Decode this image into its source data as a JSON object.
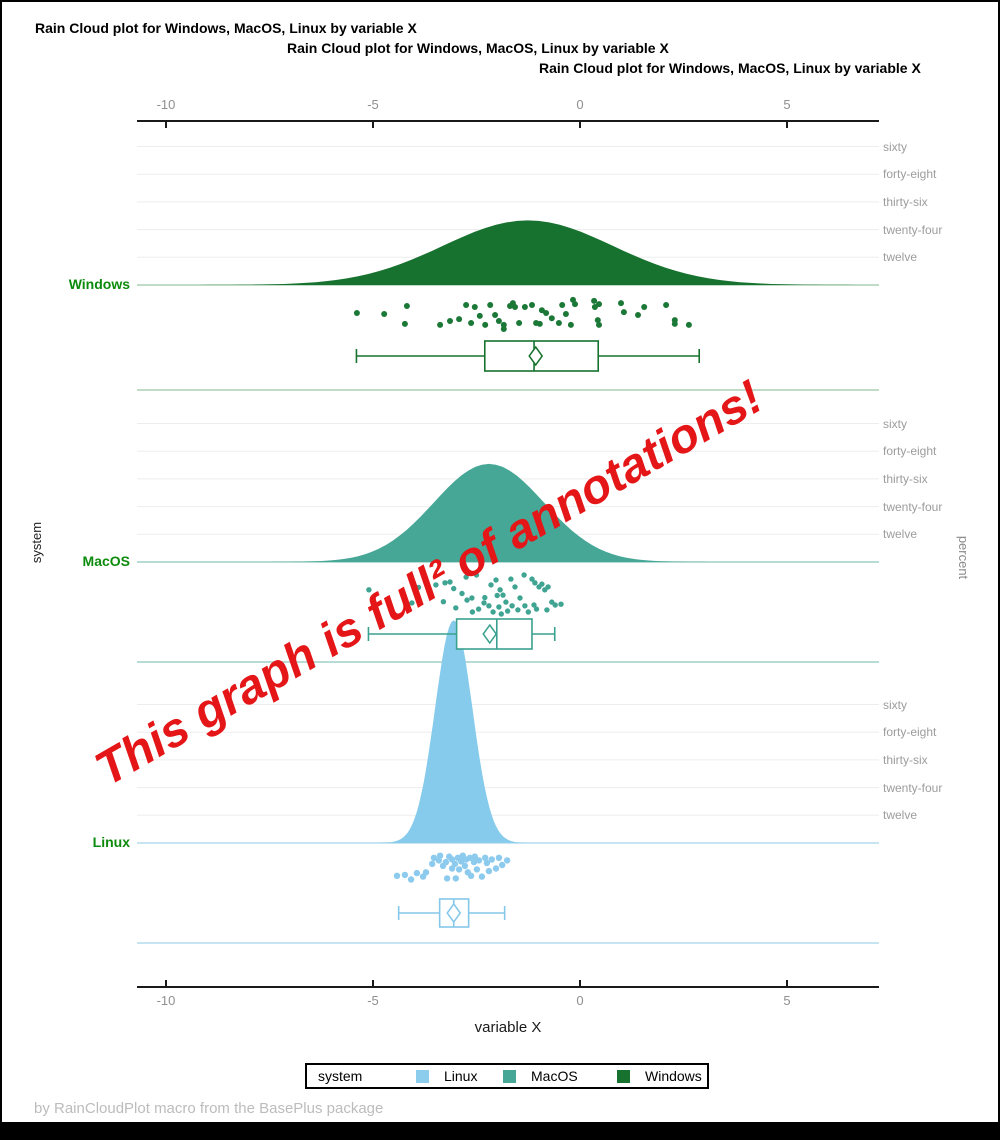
{
  "titles": [
    "Rain Cloud plot for Windows, MacOS, Linux by variable X",
    "Rain Cloud plot for Windows, MacOS, Linux by variable X",
    "Rain Cloud plot for Windows, MacOS, Linux by variable X"
  ],
  "annotation": {
    "text": "This graph is full² of annotations!",
    "color": "#e41617"
  },
  "footnote": "by RainCloudPlot macro from the BasePlus package",
  "axis": {
    "x_label": "variable X",
    "left_label": "system",
    "right_label": "percent",
    "x_ticks": [
      "-10",
      "-5",
      "0",
      "5"
    ],
    "x_tick_values": [
      -10,
      -5,
      0,
      5
    ]
  },
  "legend": {
    "title": "system",
    "entries": [
      {
        "label": "Linux",
        "color": "#8ccdee"
      },
      {
        "label": "MacOS",
        "color": "#47a797"
      },
      {
        "label": "Windows",
        "color": "#17722f"
      }
    ]
  },
  "colors": {
    "group_label_green": "#0b8b0b",
    "gridline_gray": "#ededed",
    "axis_black": "#1a1a1a",
    "tick_gray": "#8f8f8f",
    "band_label_gray": "#9c9c9c"
  },
  "chart_data": {
    "type": "raincloud",
    "title": "Rain Cloud plot for Windows, MacOS, Linux by variable X",
    "xlabel": "variable X",
    "ylabel_left": "system",
    "ylabel_right": "percent",
    "x_ticks": [
      -10,
      -5,
      0,
      5
    ],
    "x_range": [
      -10.7,
      7.2
    ],
    "percent_gridlines": {
      "values": [
        60,
        48,
        36,
        24,
        12
      ],
      "labels": [
        "sixty",
        "forty-eight",
        "thirty-six",
        "twenty-four",
        "twelve"
      ]
    },
    "groups": [
      {
        "name": "Windows",
        "fill": "#17722f",
        "point_color": "#1b7837",
        "box_color": "#17722f",
        "pale_color": "#c0dcc7",
        "density": {
          "center": -1.26,
          "sigma": 2.05,
          "peak_percent": 28
        },
        "box": {
          "min": -5.4,
          "q1": -2.3,
          "median": -1.11,
          "q3": 0.44,
          "max": 2.88,
          "mean": -1.07
        },
        "points": [
          [
            -5.39,
            0.47
          ],
          [
            -4.73,
            0.5
          ],
          [
            -4.18,
            0.25
          ],
          [
            -4.23,
            0.81
          ],
          [
            -3.38,
            0.84
          ],
          [
            -3.14,
            0.72
          ],
          [
            -2.92,
            0.66
          ],
          [
            -2.75,
            0.22
          ],
          [
            -2.63,
            0.78
          ],
          [
            -2.54,
            0.28
          ],
          [
            -2.42,
            0.56
          ],
          [
            -2.29,
            0.84
          ],
          [
            -2.17,
            0.22
          ],
          [
            -2.05,
            0.53
          ],
          [
            -1.96,
            0.72
          ],
          [
            -1.84,
            0.84
          ],
          [
            -1.84,
            0.97
          ],
          [
            -1.69,
            0.25
          ],
          [
            -1.62,
            0.16
          ],
          [
            -1.57,
            0.28
          ],
          [
            -1.47,
            0.78
          ],
          [
            -1.33,
            0.28
          ],
          [
            -1.16,
            0.22
          ],
          [
            -1.06,
            0.78
          ],
          [
            -0.97,
            0.81
          ],
          [
            -0.92,
            0.38
          ],
          [
            -0.82,
            0.47
          ],
          [
            -0.68,
            0.63
          ],
          [
            -0.51,
            0.78
          ],
          [
            -0.43,
            0.22
          ],
          [
            -0.34,
            0.5
          ],
          [
            -0.22,
            0.84
          ],
          [
            -0.17,
            0.06
          ],
          [
            -0.12,
            0.19
          ],
          [
            0.34,
            0.09
          ],
          [
            0.36,
            0.28
          ],
          [
            0.46,
            0.19
          ],
          [
            0.43,
            0.69
          ],
          [
            0.46,
            0.84
          ],
          [
            0.99,
            0.16
          ],
          [
            1.06,
            0.44
          ],
          [
            1.4,
            0.53
          ],
          [
            1.55,
            0.28
          ],
          [
            2.08,
            0.22
          ],
          [
            2.29,
            0.69
          ],
          [
            2.29,
            0.81
          ],
          [
            2.63,
            0.84
          ]
        ]
      },
      {
        "name": "MacOS",
        "fill": "#47a797",
        "point_color": "#40a493",
        "box_color": "#3aa18f",
        "pale_color": "#b7dbd5",
        "density": {
          "center": -2.2,
          "sigma": 1.33,
          "peak_percent": 42.5
        },
        "box": {
          "min": -5.11,
          "q1": -2.98,
          "median": -2.01,
          "q3": -1.16,
          "max": -0.61,
          "mean": -2.18
        },
        "points": [
          [
            -5.1,
            0.41
          ],
          [
            -4.06,
            0.73
          ],
          [
            -3.74,
            0.12
          ],
          [
            -3.48,
            0.29
          ],
          [
            -3.26,
            0.24
          ],
          [
            -3.14,
            0.22
          ],
          [
            -2.73,
            0.66
          ],
          [
            -2.61,
            0.61
          ],
          [
            -2.15,
            0.29
          ],
          [
            -2.03,
            0.17
          ],
          [
            -1.93,
            0.41
          ],
          [
            -1.86,
            0.54
          ],
          [
            -1.79,
            0.71
          ],
          [
            -1.67,
            0.15
          ],
          [
            -1.57,
            0.34
          ],
          [
            -1.45,
            0.61
          ],
          [
            -1.16,
            0.15
          ],
          [
            -1.09,
            0.24
          ],
          [
            -0.99,
            0.34
          ],
          [
            -0.92,
            0.27
          ],
          [
            -0.85,
            0.41
          ],
          [
            -0.77,
            0.34
          ],
          [
            -0.68,
            0.71
          ],
          [
            -0.6,
            0.78
          ],
          [
            -0.46,
            0.76
          ],
          [
            -1.11,
            0.78
          ],
          [
            -1.33,
            0.8
          ],
          [
            -1.64,
            0.8
          ],
          [
            -1.96,
            0.83
          ],
          [
            -2.2,
            0.8
          ],
          [
            -2.32,
            0.73
          ],
          [
            -3.6,
            0.55
          ],
          [
            -3.3,
            0.7
          ],
          [
            -3.0,
            0.85
          ],
          [
            -2.85,
            0.5
          ],
          [
            -2.6,
            0.95
          ],
          [
            -2.45,
            0.88
          ],
          [
            -2.3,
            0.6
          ],
          [
            -2.1,
            0.95
          ],
          [
            -1.9,
            1.0
          ],
          [
            -1.75,
            0.93
          ],
          [
            -1.5,
            0.9
          ],
          [
            -1.25,
            0.95
          ],
          [
            -1.05,
            0.88
          ],
          [
            -0.8,
            0.9
          ],
          [
            -3.9,
            0.35
          ],
          [
            -2.5,
            0.05
          ],
          [
            -2.75,
            0.1
          ],
          [
            -1.35,
            0.05
          ],
          [
            -3.05,
            0.38
          ],
          [
            -2.0,
            0.55
          ]
        ]
      },
      {
        "name": "Linux",
        "fill": "#87cbec",
        "point_color": "#8ccbed",
        "box_color": "#85c7e9",
        "pale_color": "#c6e4f2",
        "density": {
          "center": -3.05,
          "sigma": 0.45,
          "peak_percent": 96.5
        },
        "box": {
          "min": -4.38,
          "q1": -3.39,
          "median": -3.05,
          "q3": -2.69,
          "max": -1.82,
          "mean": -3.05
        },
        "points": [
          [
            -4.42,
            0.75
          ],
          [
            -4.23,
            0.72
          ],
          [
            -4.08,
            0.88
          ],
          [
            -3.94,
            0.66
          ],
          [
            -3.79,
            0.78
          ],
          [
            -3.72,
            0.63
          ],
          [
            -3.57,
            0.34
          ],
          [
            -3.53,
            0.13
          ],
          [
            -3.41,
            0.22
          ],
          [
            -3.38,
            0.06
          ],
          [
            -3.31,
            0.41
          ],
          [
            -3.24,
            0.28
          ],
          [
            -3.21,
            0.84
          ],
          [
            -3.16,
            0.09
          ],
          [
            -3.09,
            0.19
          ],
          [
            -3.09,
            0.5
          ],
          [
            -3.02,
            0.34
          ],
          [
            -3.0,
            0.84
          ],
          [
            -2.95,
            0.13
          ],
          [
            -2.92,
            0.53
          ],
          [
            -2.87,
            0.25
          ],
          [
            -2.83,
            0.06
          ],
          [
            -2.78,
            0.41
          ],
          [
            -2.75,
            0.19
          ],
          [
            -2.71,
            0.63
          ],
          [
            -2.66,
            0.13
          ],
          [
            -2.63,
            0.75
          ],
          [
            -2.56,
            0.28
          ],
          [
            -2.54,
            0.09
          ],
          [
            -2.49,
            0.53
          ],
          [
            -2.44,
            0.22
          ],
          [
            -2.37,
            0.78
          ],
          [
            -2.29,
            0.13
          ],
          [
            -2.25,
            0.31
          ],
          [
            -2.2,
            0.59
          ],
          [
            -2.13,
            0.19
          ],
          [
            -2.03,
            0.5
          ],
          [
            -1.96,
            0.13
          ],
          [
            -1.88,
            0.38
          ],
          [
            -1.76,
            0.22
          ]
        ]
      }
    ]
  }
}
